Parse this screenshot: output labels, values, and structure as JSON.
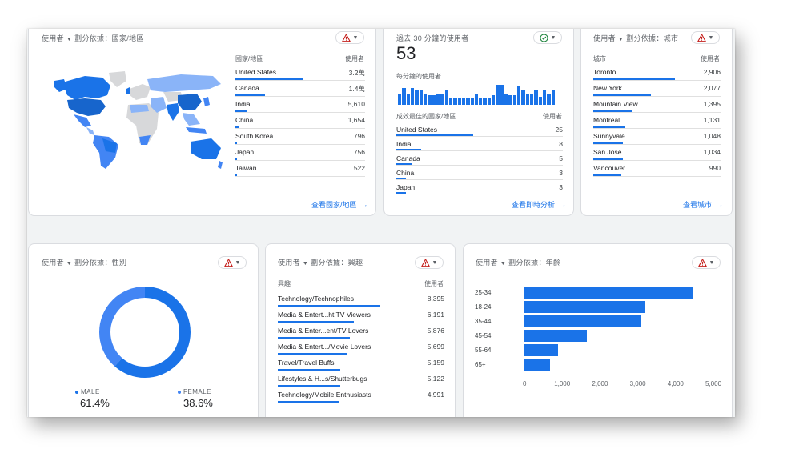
{
  "colors": {
    "accent": "#1a73e8",
    "accent_light": "#8ab4f8",
    "warn": "#c5221f",
    "ok": "#188038"
  },
  "country_card": {
    "title_metric": "使用者",
    "title_rest": "劃分依據：國家/地區",
    "col_dim": "國家/地區",
    "col_metric": "使用者",
    "rows": [
      {
        "name": "United States",
        "value": "3.2萬",
        "share": 1.0
      },
      {
        "name": "Canada",
        "value": "1.4萬",
        "share": 0.44
      },
      {
        "name": "India",
        "value": "5,610",
        "share": 0.18
      },
      {
        "name": "China",
        "value": "1,654",
        "share": 0.05
      },
      {
        "name": "South Korea",
        "value": "796",
        "share": 0.025
      },
      {
        "name": "Japan",
        "value": "756",
        "share": 0.024
      },
      {
        "name": "Taiwan",
        "value": "522",
        "share": 0.016
      }
    ],
    "link": "查看國家/地區"
  },
  "realtime_card": {
    "title": "過去 30 分鐘的使用者",
    "big_value": "53",
    "per_minute_label": "每分鐘的使用者",
    "minute_bars": [
      0.55,
      0.8,
      0.55,
      0.8,
      0.75,
      0.75,
      0.55,
      0.45,
      0.45,
      0.55,
      0.55,
      0.7,
      0.3,
      0.35,
      0.35,
      0.35,
      0.35,
      0.35,
      0.5,
      0.3,
      0.3,
      0.3,
      0.45,
      0.95,
      0.95,
      0.5,
      0.45,
      0.45,
      0.9,
      0.75,
      0.5,
      0.5,
      0.75,
      0.4,
      0.7,
      0.5,
      0.75
    ],
    "col_dim": "成效最佳的國家/地區",
    "col_metric": "使用者",
    "rows": [
      {
        "name": "United States",
        "value": "25",
        "share": 1.0
      },
      {
        "name": "India",
        "value": "8",
        "share": 0.32
      },
      {
        "name": "Canada",
        "value": "5",
        "share": 0.2
      },
      {
        "name": "China",
        "value": "3",
        "share": 0.12
      },
      {
        "name": "Japan",
        "value": "3",
        "share": 0.12
      }
    ],
    "link": "查看即時分析"
  },
  "city_card": {
    "title_metric": "使用者",
    "title_rest": "劃分依據：城市",
    "col_dim": "城市",
    "col_metric": "使用者",
    "rows": [
      {
        "name": "Toronto",
        "value": "2,906",
        "share": 1.0
      },
      {
        "name": "New York",
        "value": "2,077",
        "share": 0.71
      },
      {
        "name": "Mountain View",
        "value": "1,395",
        "share": 0.48
      },
      {
        "name": "Montreal",
        "value": "1,131",
        "share": 0.39
      },
      {
        "name": "Sunnyvale",
        "value": "1,048",
        "share": 0.36
      },
      {
        "name": "San Jose",
        "value": "1,034",
        "share": 0.36
      },
      {
        "name": "Vancouver",
        "value": "990",
        "share": 0.34
      }
    ],
    "link": "查看城市"
  },
  "gender_card": {
    "title_metric": "使用者",
    "title_rest": "劃分依據：性別",
    "male_label": "MALE",
    "male_pct": "61.4%",
    "female_label": "FEMALE",
    "female_pct": "38.6%",
    "male_share": 0.614
  },
  "interest_card": {
    "title_metric": "使用者",
    "title_rest": "劃分依據：興趣",
    "col_dim": "興趣",
    "col_metric": "使用者",
    "rows": [
      {
        "name": "Technology/Technophiles",
        "value": "8,395",
        "share": 1.0
      },
      {
        "name": "Media & Entert...ht TV Viewers",
        "value": "6,191",
        "share": 0.74
      },
      {
        "name": "Media & Enter...ent/TV Lovers",
        "value": "5,876",
        "share": 0.7
      },
      {
        "name": "Media & Entert.../Movie Lovers",
        "value": "5,699",
        "share": 0.68
      },
      {
        "name": "Travel/Travel Buffs",
        "value": "5,159",
        "share": 0.61
      },
      {
        "name": "Lifestyles & H...s/Shutterbugs",
        "value": "5,122",
        "share": 0.61
      },
      {
        "name": "Technology/Mobile Enthusiasts",
        "value": "4,991",
        "share": 0.59
      }
    ]
  },
  "age_card": {
    "title_metric": "使用者",
    "title_rest": "劃分依據：年齡",
    "chart_data": {
      "type": "bar",
      "orientation": "horizontal",
      "categories": [
        "25-34",
        "18-24",
        "35-44",
        "45-54",
        "55-64",
        "65+"
      ],
      "values": [
        4450,
        3200,
        3100,
        1650,
        880,
        680
      ],
      "xlim": [
        0,
        5000
      ],
      "ticks": [
        "0",
        "1,000",
        "2,000",
        "3,000",
        "4,000",
        "5,000"
      ],
      "tick_values": [
        0,
        1000,
        2000,
        3000,
        4000,
        5000
      ]
    }
  }
}
